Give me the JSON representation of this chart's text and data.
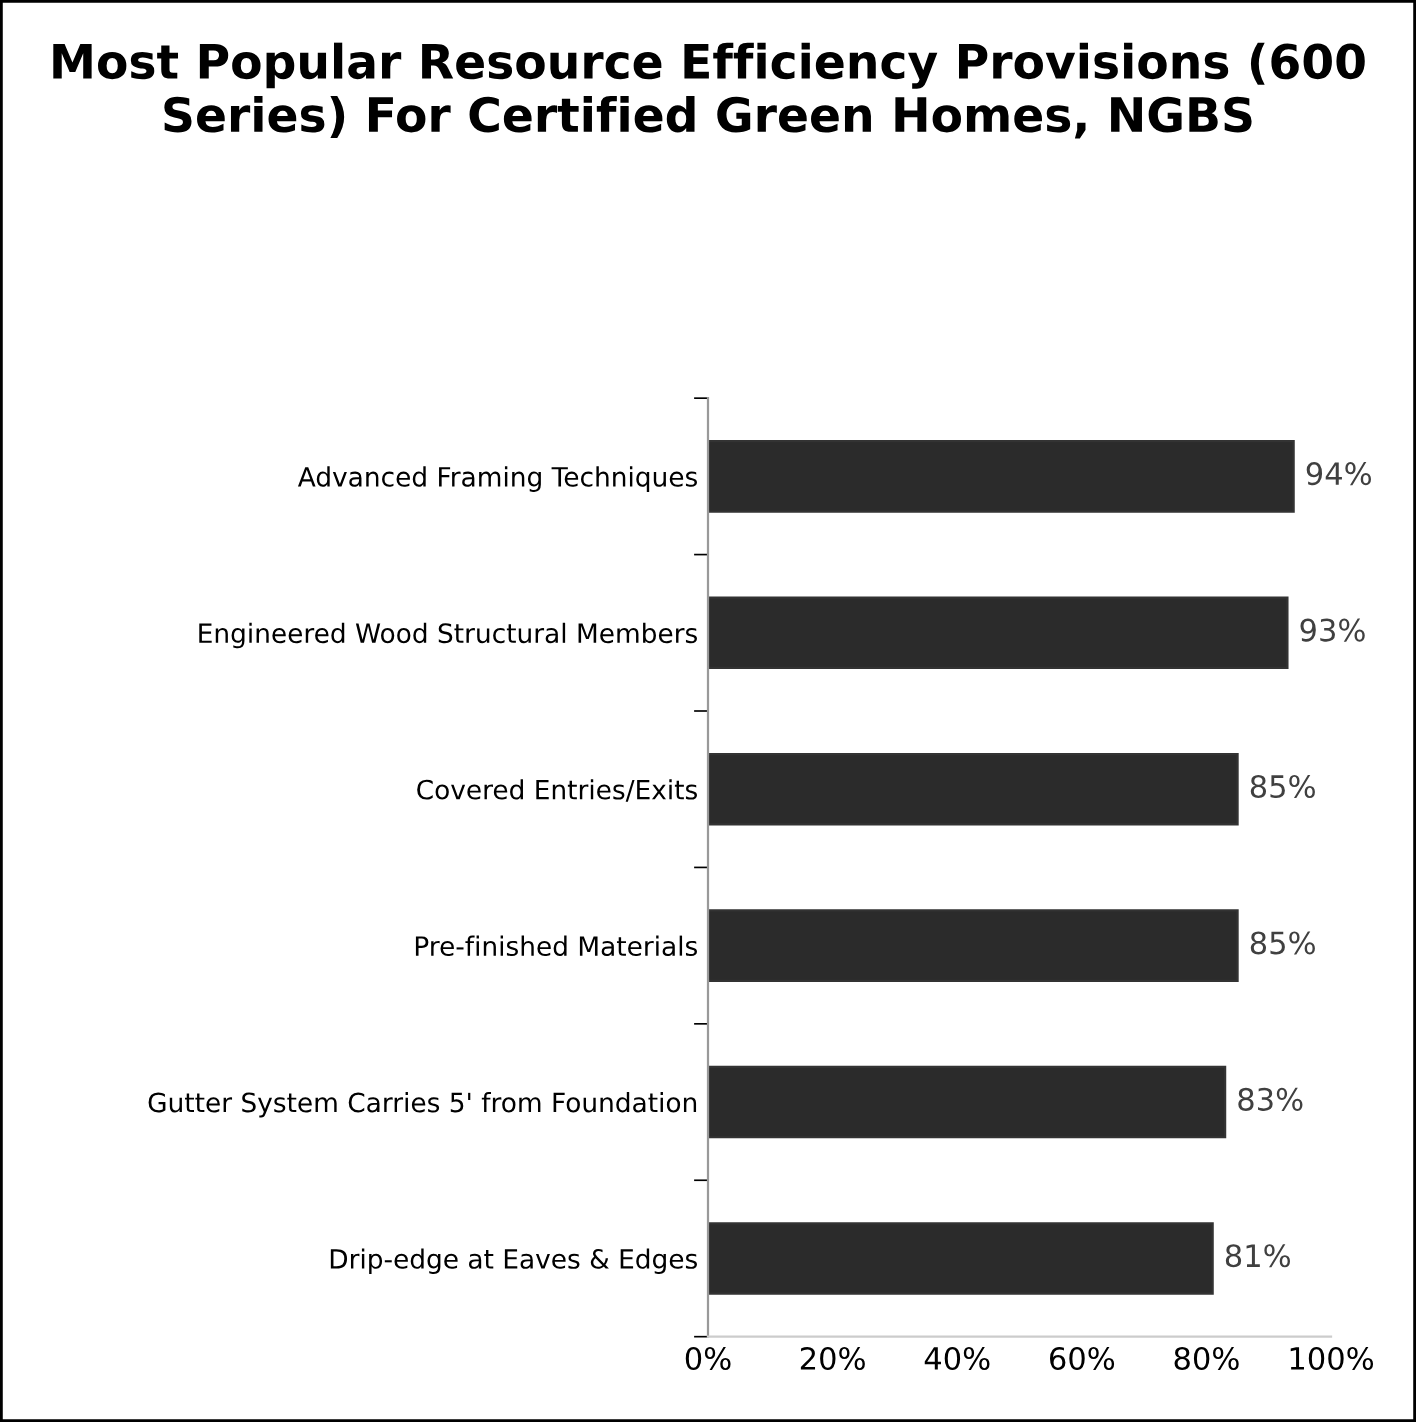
{
  "chart_data": {
    "type": "bar",
    "orientation": "horizontal",
    "title": "Most Popular Resource Efficiency Provisions (600 Series) For Certified Green Homes, NGBS",
    "categories": [
      "Advanced Framing Techniques",
      "Engineered Wood Structural Members",
      "Covered Entries/Exits",
      "Pre-finished Materials",
      "Gutter System Carries 5' from Foundation",
      "Drip-edge at Eaves & Edges"
    ],
    "values": [
      94,
      93,
      85,
      85,
      83,
      81
    ],
    "value_labels": [
      "94%",
      "93%",
      "85%",
      "85%",
      "83%",
      "81%"
    ],
    "color": "#2b2b2b",
    "xlim": [
      0,
      100
    ],
    "xticks": [
      {
        "value": 0,
        "label": "0%"
      },
      {
        "value": 20,
        "label": "20%"
      },
      {
        "value": 40,
        "label": "40%"
      },
      {
        "value": 60,
        "label": "60%"
      },
      {
        "value": 80,
        "label": "80%"
      },
      {
        "value": 100,
        "label": "100%"
      }
    ],
    "grid": false,
    "legend": false
  }
}
